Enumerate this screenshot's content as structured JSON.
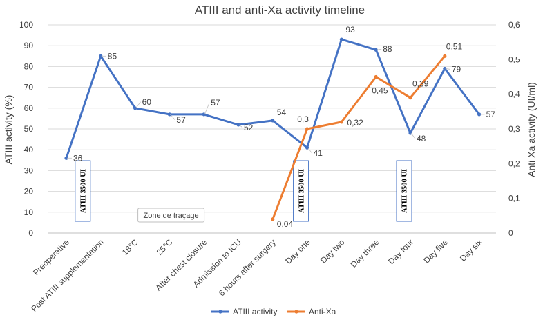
{
  "chart_data": {
    "type": "line",
    "title": "ATIII and anti-Xa activity timeline",
    "ylabel": "ATIII activity (%)",
    "y2label": "Anti Xa activity (UI/ml)",
    "ylim": [
      0,
      100
    ],
    "y2lim": [
      0,
      0.6
    ],
    "yticks": [
      "0",
      "10",
      "20",
      "30",
      "40",
      "50",
      "60",
      "70",
      "80",
      "90",
      "100"
    ],
    "y2ticks": [
      "0",
      "0,1",
      "0,2",
      "0,3",
      "0,4",
      "0,5",
      "0,6"
    ],
    "categories": [
      "Preoperative",
      "Post ATIII supplementation",
      "18°C",
      "25°C",
      "After chest closure",
      "Admission to ICU",
      "6 hours after surgery",
      "Day one",
      "Day two",
      "Day three",
      "Day four",
      "Day five",
      "Day six"
    ],
    "series": [
      {
        "name": "ATIII activity",
        "axis": "left",
        "color": "#4472C4",
        "values": [
          36,
          85,
          60,
          57,
          57,
          52,
          54,
          41,
          93,
          88,
          48,
          79,
          57
        ],
        "labels": [
          "36",
          "85",
          "60",
          "57",
          "57",
          "52",
          "54",
          "41",
          "93",
          "88",
          "48",
          "79",
          "57"
        ]
      },
      {
        "name": "Anti-Xa",
        "axis": "right",
        "color": "#ED7D31",
        "values": [
          null,
          null,
          null,
          null,
          null,
          null,
          0.04,
          0.3,
          0.32,
          0.45,
          0.39,
          0.51,
          null
        ],
        "labels": [
          null,
          null,
          null,
          null,
          null,
          null,
          "0,04",
          "0,3",
          "0,32",
          "0,45",
          "0,39",
          "0,51",
          null
        ]
      }
    ],
    "annotations": [
      {
        "text": "ATIII 3500 UI",
        "category": "Post ATIII supplementation"
      },
      {
        "text": "ATIII 3500 UI",
        "category": "Day one"
      },
      {
        "text": "ATIII 3500 UI",
        "category": "Day four"
      },
      {
        "text": "Zone de traçage",
        "category": "18°C"
      }
    ],
    "legend": [
      "ATIII activity",
      "Anti-Xa"
    ],
    "legend_position": "bottom"
  }
}
